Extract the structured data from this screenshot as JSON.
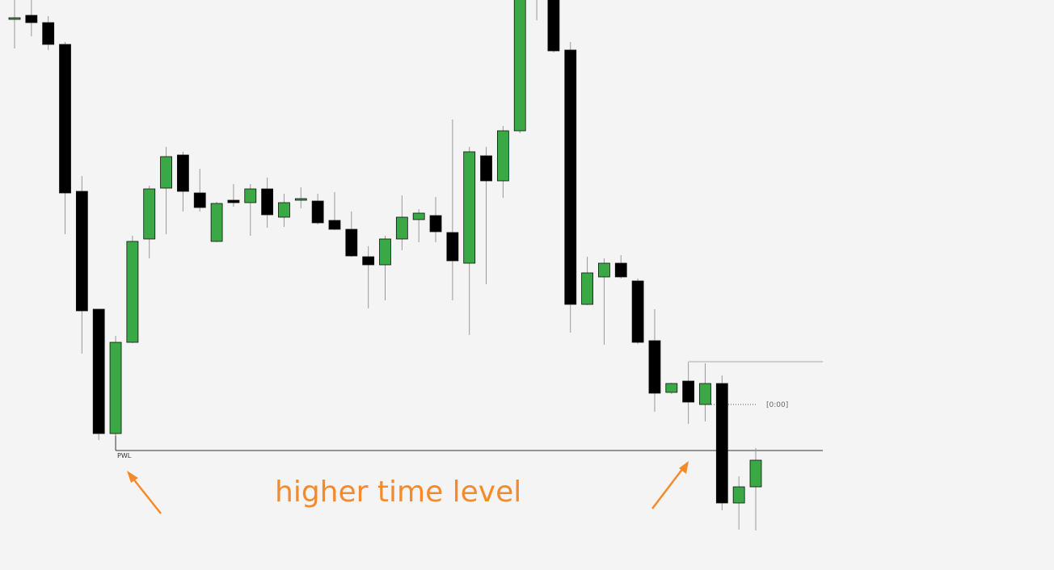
{
  "chart_data": {
    "type": "candlestick",
    "up_color": "#3aa845",
    "down_color": "#000000",
    "ylim": [
      0,
      706
    ],
    "open": [
      682,
      687,
      678,
      651,
      469,
      323,
      169,
      282,
      410,
      473,
      514,
      467,
      407,
      458,
      455,
      472,
      437,
      458,
      457,
      433,
      422,
      388,
      378,
      410,
      434,
      439,
      418,
      380,
      513,
      482,
      544,
      736,
      720,
      644,
      329,
      363,
      380,
      358,
      284,
      220,
      234,
      205,
      231,
      83,
      103
    ],
    "high": [
      706,
      706,
      686,
      654,
      488,
      323,
      290,
      414,
      476,
      524,
      518,
      497,
      456,
      478,
      478,
      486,
      466,
      474,
      466,
      468,
      444,
      401,
      414,
      464,
      447,
      462,
      558,
      524,
      524,
      550,
      740,
      746,
      730,
      654,
      388,
      386,
      390,
      361,
      323,
      232,
      256,
      256,
      241,
      116,
      151
    ],
    "low": [
      646,
      661,
      644,
      416,
      268,
      161,
      166,
      281,
      386,
      416,
      444,
      444,
      406,
      450,
      414,
      424,
      425,
      448,
      428,
      421,
      388,
      324,
      334,
      396,
      406,
      406,
      334,
      291,
      354,
      461,
      541,
      681,
      641,
      294,
      328,
      279,
      361,
      280,
      196,
      218,
      181,
      184,
      74,
      50,
      49
    ],
    "close": [
      684,
      678,
      651,
      467,
      321,
      169,
      282,
      407,
      472,
      512,
      469,
      449,
      454,
      455,
      472,
      440,
      455,
      460,
      430,
      422,
      389,
      378,
      410,
      437,
      442,
      419,
      383,
      518,
      482,
      544,
      730,
      720,
      643,
      329,
      368,
      380,
      363,
      282,
      219,
      231,
      208,
      231,
      83,
      103,
      136
    ],
    "levels": [
      {
        "label": "PWL",
        "value": 148
      },
      {
        "value": 258
      },
      {
        "label": "[0:00]",
        "value": 205
      }
    ],
    "annotation": "higher time level",
    "annotation_color": "#f58a2c"
  }
}
